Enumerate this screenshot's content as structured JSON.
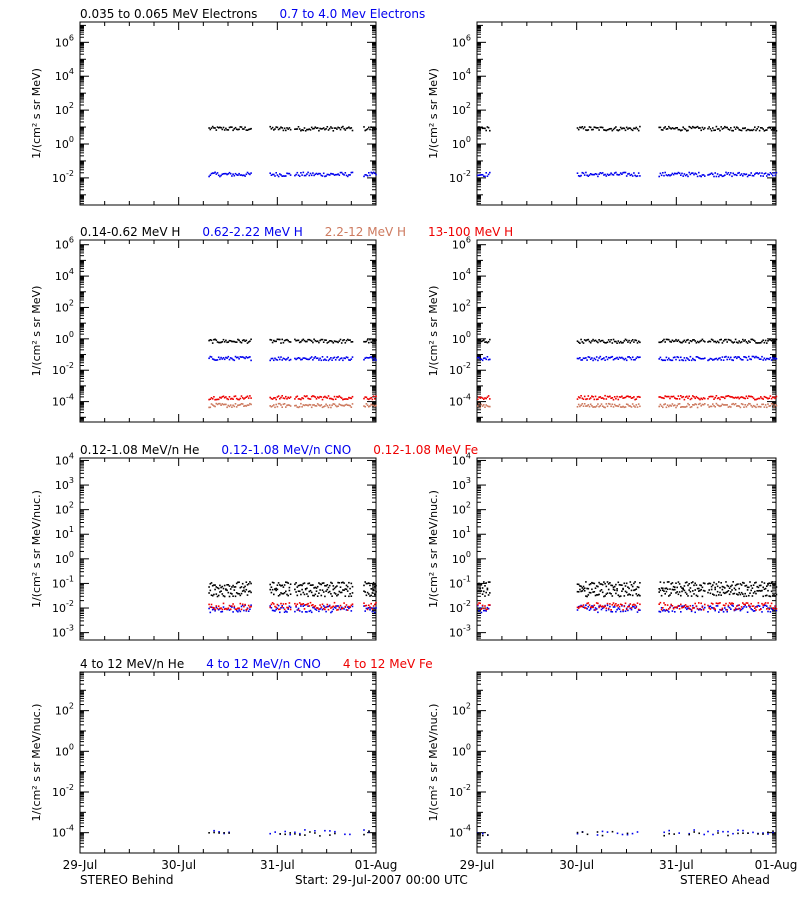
{
  "footer": {
    "left_label": "STEREO Behind",
    "center_label": "Start: 29-Jul-2007 00:00 UTC",
    "right_label": "STEREO Ahead"
  },
  "x_axis": {
    "tick_labels": [
      "29-Jul",
      "30-Jul",
      "31-Jul",
      "01-Aug"
    ],
    "range_days": [
      0,
      3
    ]
  },
  "rows": [
    {
      "ylabel": "1/(cm² s sr MeV)",
      "legend": [
        {
          "text": "0.035 to 0.065 MeV Electrons",
          "color": "#000000"
        },
        {
          "text": "0.7 to 4.0 Mev Electrons",
          "color": "#0000ee"
        }
      ],
      "ylim_log10": [
        -3.6,
        7.2
      ],
      "tick_exponents": [
        -2,
        0,
        2,
        4,
        6
      ],
      "blocks": {
        "behind": [
          [
            1.3,
            1.73
          ],
          [
            1.92,
            2.13
          ],
          [
            2.17,
            2.76
          ],
          [
            2.87,
            3.0
          ]
        ],
        "ahead": [
          [
            0.0,
            0.13
          ],
          [
            1.0,
            1.63
          ],
          [
            1.82,
            2.28
          ],
          [
            2.31,
            3.0
          ]
        ]
      },
      "series": [
        {
          "color": "#000000",
          "log10": 0.95
        },
        {
          "color": "#0000ee",
          "log10": -1.75
        }
      ]
    },
    {
      "ylabel": "1/(cm² s sr MeV)",
      "legend": [
        {
          "text": "0.14-0.62 MeV H",
          "color": "#000000"
        },
        {
          "text": "0.62-2.22 MeV H",
          "color": "#0000ee"
        },
        {
          "text": "2.2-12 MeV H",
          "color": "#cd7a5f"
        },
        {
          "text": "13-100 MeV H",
          "color": "#ee0000"
        }
      ],
      "ylim_log10": [
        -5.3,
        6.3
      ],
      "tick_exponents": [
        -4,
        -2,
        0,
        2,
        4,
        6
      ],
      "blocks": {
        "behind": [
          [
            1.3,
            1.73
          ],
          [
            1.92,
            2.13
          ],
          [
            2.17,
            2.76
          ],
          [
            2.87,
            3.0
          ]
        ],
        "ahead": [
          [
            0.0,
            0.13
          ],
          [
            1.0,
            1.63
          ],
          [
            1.82,
            2.28
          ],
          [
            2.31,
            3.0
          ]
        ]
      },
      "series": [
        {
          "color": "#000000",
          "log10": -0.1
        },
        {
          "color": "#0000ee",
          "log10": -1.2
        },
        {
          "color": "#ee0000",
          "log10": -3.7
        },
        {
          "color": "#cd7a5f",
          "log10": -4.2
        }
      ]
    },
    {
      "ylabel": "1/(cm² s sr MeV/nuc.)",
      "legend": [
        {
          "text": "0.12-1.08 MeV/n He",
          "color": "#000000"
        },
        {
          "text": "0.12-1.08 MeV/n CNO",
          "color": "#0000ee"
        },
        {
          "text": "0.12-1.08 MeV Fe",
          "color": "#ee0000"
        }
      ],
      "ylim_log10": [
        -3.3,
        4.1
      ],
      "tick_exponents": [
        -3,
        -2,
        -1,
        0,
        1,
        2,
        3,
        4
      ],
      "blocks": {
        "behind": [
          [
            1.3,
            1.73
          ],
          [
            1.92,
            2.13
          ],
          [
            2.17,
            2.76
          ],
          [
            2.87,
            3.0
          ]
        ],
        "ahead": [
          [
            0.0,
            0.13
          ],
          [
            1.0,
            1.63
          ],
          [
            1.82,
            2.28
          ],
          [
            2.31,
            3.0
          ]
        ]
      },
      "series": [
        {
          "color": "#000000",
          "log10": -1.35
        },
        {
          "color": "#000000",
          "log10": -1.05
        },
        {
          "color": "#0000ee",
          "log10": -2.0
        },
        {
          "color": "#ee0000",
          "log10": -1.9
        }
      ]
    },
    {
      "ylabel": "1/(cm² s sr MeV/nuc.)",
      "legend": [
        {
          "text": "4 to 12 MeV/n He",
          "color": "#000000"
        },
        {
          "text": "4 to 12 MeV/n CNO",
          "color": "#0000ee"
        },
        {
          "text": "4 to 12 MeV Fe",
          "color": "#ee0000"
        }
      ],
      "ylim_log10": [
        -5.0,
        3.9
      ],
      "tick_exponents": [
        -4,
        -2,
        0,
        2
      ],
      "blocks": {
        "behind": [
          [
            1.3,
            1.52
          ],
          [
            1.92,
            2.13
          ],
          [
            2.17,
            2.76
          ],
          [
            2.87,
            3.0
          ]
        ],
        "ahead": [
          [
            0.0,
            0.13
          ],
          [
            1.0,
            1.63
          ],
          [
            1.82,
            2.28
          ],
          [
            2.31,
            3.0
          ]
        ]
      },
      "series": [
        {
          "color": "#0000ee",
          "log10": -3.95
        },
        {
          "color": "#000000",
          "log10": -4.0
        }
      ]
    }
  ],
  "chart_data": [
    {
      "type": "scatter",
      "title": "STEREO Behind — 0.035 to 0.065 MeV Electrons / 0.7 to 4.0 Mev Electrons",
      "ylabel": "1/(cm² s sr MeV)",
      "x_ticks": [
        "29-Jul",
        "30-Jul",
        "31-Jul",
        "01-Aug"
      ],
      "y_scale": "log",
      "ylim": [
        0.00025,
        16000000.0
      ],
      "series": [
        {
          "name": "0.035 to 0.065 MeV Electrons",
          "approx_value": 9,
          "x_range": [
            "30-Jul 07:00",
            "01-Aug"
          ]
        },
        {
          "name": "0.7 to 4.0 Mev Electrons",
          "approx_value": 0.018,
          "x_range": [
            "30-Jul 07:00",
            "01-Aug"
          ]
        }
      ]
    },
    {
      "type": "scatter",
      "title": "STEREO Ahead — 0.035 to 0.065 MeV Electrons / 0.7 to 4.0 Mev Electrons",
      "ylabel": "1/(cm² s sr MeV)",
      "x_ticks": [
        "29-Jul",
        "30-Jul",
        "31-Jul",
        "01-Aug"
      ],
      "y_scale": "log",
      "ylim": [
        0.00025,
        16000000.0
      ],
      "series": [
        {
          "name": "0.035 to 0.065 MeV Electrons",
          "approx_value": 9
        },
        {
          "name": "0.7 to 4.0 Mev Electrons",
          "approx_value": 0.018
        }
      ]
    },
    {
      "type": "scatter",
      "title": "STEREO Behind — H",
      "ylabel": "1/(cm² s sr MeV)",
      "y_scale": "log",
      "series": [
        {
          "name": "0.14-0.62 MeV H",
          "approx_value": 0.8
        },
        {
          "name": "0.62-2.22 MeV H",
          "approx_value": 0.063
        },
        {
          "name": "2.2-12 MeV H",
          "approx_value": 6e-05
        },
        {
          "name": "13-100 MeV H",
          "approx_value": 0.0002
        }
      ]
    },
    {
      "type": "scatter",
      "title": "STEREO Ahead — H",
      "ylabel": "1/(cm² s sr MeV)",
      "y_scale": "log",
      "series": [
        {
          "name": "0.14-0.62 MeV H",
          "approx_value": 0.8
        },
        {
          "name": "0.62-2.22 MeV H",
          "approx_value": 0.063
        },
        {
          "name": "2.2-12 MeV H",
          "approx_value": 6e-05
        },
        {
          "name": "13-100 MeV H",
          "approx_value": 0.0002
        }
      ]
    },
    {
      "type": "scatter",
      "title": "STEREO Behind — 0.12-1.08 MeV/n",
      "ylabel": "1/(cm² s sr MeV/nuc.)",
      "y_scale": "log",
      "series": [
        {
          "name": "0.12-1.08 MeV/n He",
          "approx_value": 0.05
        },
        {
          "name": "0.12-1.08 MeV/n CNO",
          "approx_value": 0.01
        },
        {
          "name": "0.12-1.08 MeV Fe",
          "approx_value": 0.012
        }
      ]
    },
    {
      "type": "scatter",
      "title": "STEREO Ahead — 0.12-1.08 MeV/n",
      "ylabel": "1/(cm² s sr MeV/nuc.)",
      "y_scale": "log",
      "series": [
        {
          "name": "0.12-1.08 MeV/n He",
          "approx_value": 0.05
        },
        {
          "name": "0.12-1.08 MeV/n CNO",
          "approx_value": 0.01
        },
        {
          "name": "0.12-1.08 MeV Fe",
          "approx_value": 0.012
        }
      ]
    },
    {
      "type": "scatter",
      "title": "STEREO Behind — 4 to 12 MeV/n",
      "ylabel": "1/(cm² s sr MeV/nuc.)",
      "y_scale": "log",
      "series": [
        {
          "name": "4 to 12 MeV/n He",
          "approx_value": 0.0001
        },
        {
          "name": "4 to 12 MeV/n CNO",
          "approx_value": 0.00011
        }
      ]
    },
    {
      "type": "scatter",
      "title": "STEREO Ahead — 4 to 12 MeV/n",
      "ylabel": "1/(cm² s sr MeV/nuc.)",
      "y_scale": "log",
      "series": [
        {
          "name": "4 to 12 MeV/n He",
          "approx_value": 0.0001
        }
      ]
    }
  ]
}
